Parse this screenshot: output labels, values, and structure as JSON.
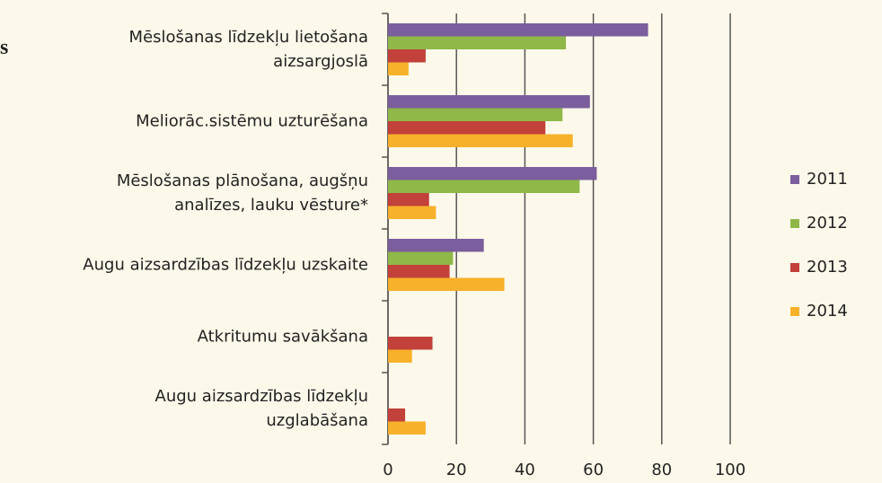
{
  "annotation": "s",
  "chart_data": {
    "type": "hbar",
    "categories": [
      "Mēslošanas līdzekļu lietošana\naizsargjoslā",
      "Meliorāc.sistēmu uzturēšana",
      "Mēslošanas plānošana, augšņu\nanalīzes, lauku vēsture*",
      "Augu aizsardzības līdzekļu uzskaite",
      "Atkritumu savākšana",
      "Augu aizsardzības līdzekļu\nuzglabāšana"
    ],
    "series": [
      {
        "name": "2011",
        "color": "#7b5e9e",
        "values": [
          76,
          59,
          61,
          28,
          null,
          null
        ]
      },
      {
        "name": "2012",
        "color": "#8fb849",
        "values": [
          52,
          51,
          56,
          19,
          null,
          null
        ]
      },
      {
        "name": "2013",
        "color": "#c2413a",
        "values": [
          11,
          46,
          12,
          18,
          13,
          5
        ]
      },
      {
        "name": "2014",
        "color": "#f7b12a",
        "values": [
          6,
          54,
          14,
          34,
          7,
          11
        ]
      }
    ],
    "xlim": [
      0,
      100
    ],
    "xticks": [
      0,
      20,
      40,
      60,
      80,
      100
    ],
    "grid": true,
    "legend": "right"
  }
}
